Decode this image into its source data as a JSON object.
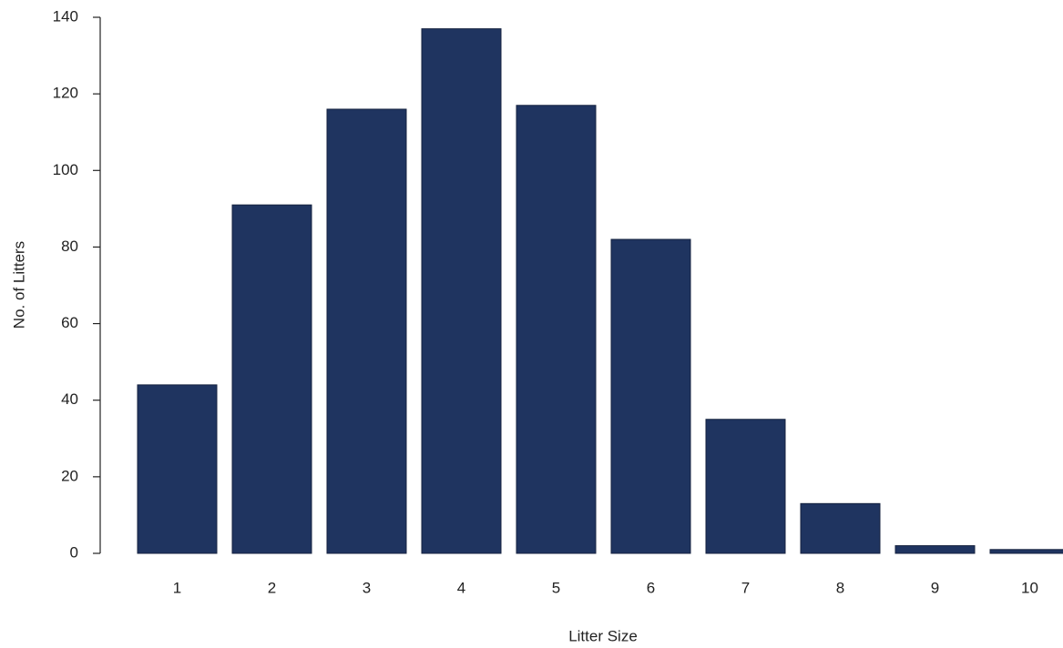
{
  "chart_data": {
    "type": "bar",
    "x_label": "Litter Size",
    "y_label": "No. of Litters",
    "categories": [
      "1",
      "2",
      "3",
      "4",
      "5",
      "6",
      "7",
      "8",
      "9",
      "10"
    ],
    "values": [
      44,
      91,
      116,
      137,
      117,
      82,
      35,
      13,
      2,
      1
    ],
    "color": "#1f3460",
    "ylim": [
      0,
      140
    ],
    "yticks": [
      0,
      20,
      40,
      60,
      80,
      100,
      120,
      140
    ]
  }
}
